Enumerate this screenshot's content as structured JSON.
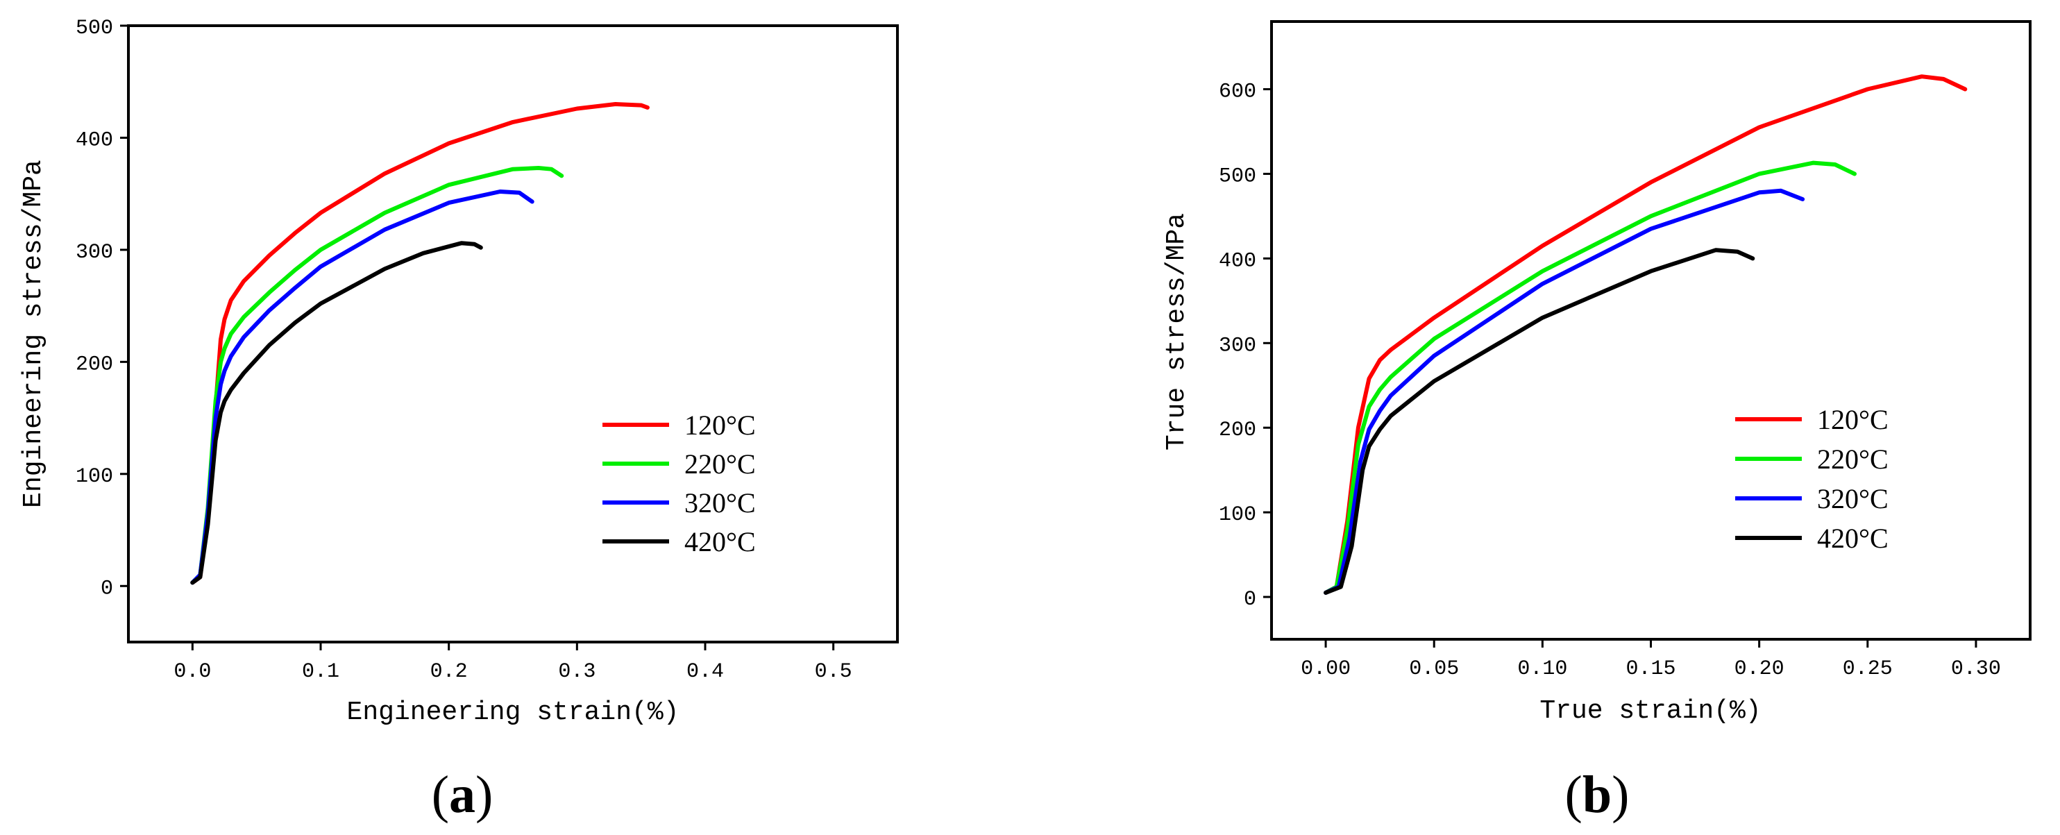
{
  "chart_data": [
    {
      "type": "line",
      "panel": "a",
      "title": "",
      "xlabel": "Engineering strain(%)",
      "ylabel": "Engineering stress/MPa",
      "xlim": [
        -0.05,
        0.55
      ],
      "ylim": [
        -50,
        500
      ],
      "xticks": [
        0.0,
        0.1,
        0.2,
        0.3,
        0.4,
        0.5
      ],
      "xtick_labels": [
        "0.0",
        "0.1",
        "0.2",
        "0.3",
        "0.4",
        "0.5"
      ],
      "yticks": [
        0,
        100,
        200,
        300,
        400,
        500
      ],
      "ytick_labels": [
        "0",
        "100",
        "200",
        "300",
        "400",
        "500"
      ],
      "grid": false,
      "legend": "right",
      "series": [
        {
          "name": "120°C",
          "color": "#ff0000",
          "x": [
            0.0,
            0.006,
            0.012,
            0.018,
            0.022,
            0.025,
            0.03,
            0.04,
            0.06,
            0.08,
            0.1,
            0.15,
            0.2,
            0.25,
            0.3,
            0.33,
            0.35,
            0.355
          ],
          "y": [
            3,
            8,
            60,
            160,
            220,
            238,
            255,
            272,
            295,
            315,
            333,
            368,
            395,
            414,
            426,
            430,
            429,
            427
          ]
        },
        {
          "name": "220°C",
          "color": "#00ee00",
          "x": [
            0.0,
            0.006,
            0.012,
            0.018,
            0.022,
            0.025,
            0.03,
            0.04,
            0.06,
            0.08,
            0.1,
            0.15,
            0.2,
            0.25,
            0.27,
            0.28,
            0.288
          ],
          "y": [
            3,
            10,
            70,
            165,
            200,
            212,
            225,
            240,
            262,
            282,
            300,
            333,
            358,
            372,
            373,
            372,
            366
          ]
        },
        {
          "name": "320°C",
          "color": "#0000ff",
          "x": [
            0.0,
            0.006,
            0.012,
            0.018,
            0.022,
            0.025,
            0.03,
            0.04,
            0.06,
            0.08,
            0.1,
            0.15,
            0.2,
            0.24,
            0.255,
            0.265
          ],
          "y": [
            3,
            10,
            65,
            150,
            180,
            192,
            205,
            222,
            246,
            266,
            285,
            318,
            342,
            352,
            351,
            343
          ]
        },
        {
          "name": "420°C",
          "color": "#000000",
          "x": [
            0.0,
            0.006,
            0.012,
            0.018,
            0.022,
            0.025,
            0.03,
            0.04,
            0.06,
            0.08,
            0.1,
            0.15,
            0.18,
            0.21,
            0.22,
            0.225
          ],
          "y": [
            3,
            8,
            55,
            130,
            155,
            165,
            175,
            190,
            215,
            235,
            252,
            283,
            297,
            306,
            305,
            302
          ]
        }
      ]
    },
    {
      "type": "line",
      "panel": "b",
      "title": "",
      "xlabel": "True strain(%)",
      "ylabel": "True stress/MPa",
      "xlim": [
        -0.025,
        0.325
      ],
      "ylim": [
        -50,
        680
      ],
      "xticks": [
        0.0,
        0.05,
        0.1,
        0.15,
        0.2,
        0.25,
        0.3
      ],
      "xtick_labels": [
        "0.00",
        "0.05",
        "0.10",
        "0.15",
        "0.20",
        "0.25",
        "0.30"
      ],
      "yticks": [
        0,
        100,
        200,
        300,
        400,
        500,
        600
      ],
      "ytick_labels": [
        "0",
        "100",
        "200",
        "300",
        "400",
        "500",
        "600"
      ],
      "grid": false,
      "legend": "right",
      "series": [
        {
          "name": "120°C",
          "color": "#ff0000",
          "x": [
            0.0,
            0.005,
            0.01,
            0.015,
            0.02,
            0.025,
            0.03,
            0.05,
            0.1,
            0.15,
            0.2,
            0.25,
            0.275,
            0.285,
            0.295
          ],
          "y": [
            5,
            12,
            90,
            200,
            258,
            280,
            292,
            330,
            415,
            490,
            555,
            600,
            615,
            612,
            600
          ]
        },
        {
          "name": "220°C",
          "color": "#00ee00",
          "x": [
            0.0,
            0.005,
            0.01,
            0.015,
            0.02,
            0.025,
            0.03,
            0.05,
            0.1,
            0.15,
            0.2,
            0.225,
            0.235,
            0.244
          ],
          "y": [
            5,
            12,
            80,
            180,
            225,
            245,
            260,
            305,
            385,
            450,
            500,
            513,
            511,
            500
          ]
        },
        {
          "name": "320°C",
          "color": "#0000ff",
          "x": [
            0.0,
            0.006,
            0.011,
            0.016,
            0.02,
            0.025,
            0.03,
            0.05,
            0.1,
            0.15,
            0.2,
            0.21,
            0.22
          ],
          "y": [
            5,
            12,
            70,
            160,
            198,
            220,
            238,
            285,
            370,
            435,
            478,
            480,
            470
          ]
        },
        {
          "name": "420°C",
          "color": "#000000",
          "x": [
            0.0,
            0.007,
            0.012,
            0.017,
            0.02,
            0.025,
            0.03,
            0.05,
            0.1,
            0.15,
            0.18,
            0.19,
            0.197
          ],
          "y": [
            5,
            12,
            60,
            150,
            178,
            198,
            214,
            255,
            330,
            385,
            410,
            408,
            400
          ]
        }
      ]
    }
  ],
  "panel_labels": [
    {
      "open": "(",
      "letter": "a",
      "close": ")"
    },
    {
      "open": "(",
      "letter": "b",
      "close": ")"
    }
  ]
}
